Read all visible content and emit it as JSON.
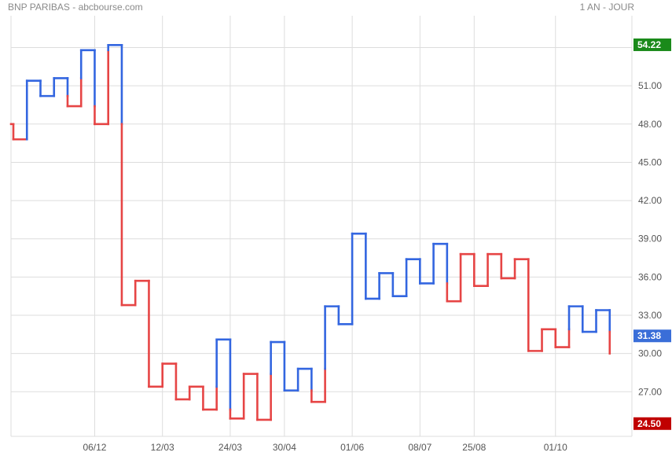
{
  "header": {
    "title": "BNP PARIBAS - abcbourse.com",
    "period": "1 AN - JOUR"
  },
  "colors": {
    "up": "#3366e0",
    "down": "#e64545",
    "grid": "#dddddd",
    "high_badge": "#1a8a1a",
    "last_badge": "#3a6ed8",
    "low_badge": "#c00000"
  },
  "chart_data": {
    "type": "line",
    "subtype": "kagi",
    "title": "BNP PARIBAS - abcbourse.com",
    "period": "1 AN - JOUR",
    "ylim": [
      23.5,
      56.5
    ],
    "y_ticks": [
      "27.00",
      "30.00",
      "33.00",
      "36.00",
      "39.00",
      "42.00",
      "45.00",
      "48.00",
      "51.00",
      "54.00"
    ],
    "x_ticks": [
      "06/12",
      "12/03",
      "24/03",
      "30/04",
      "01/06",
      "08/07",
      "25/08",
      "01/10"
    ],
    "badges": {
      "high": "54.22",
      "last": "31.38",
      "low": "24.50"
    },
    "kagi_levels": [
      48.0,
      46.8,
      51.4,
      50.2,
      51.6,
      49.4,
      53.8,
      48.0,
      54.2,
      33.8,
      35.7,
      27.4,
      29.2,
      26.4,
      27.4,
      25.6,
      31.1,
      24.9,
      28.4,
      24.8,
      30.9,
      27.1,
      28.8,
      26.2,
      33.7,
      32.3,
      39.4,
      34.3,
      36.3,
      34.5,
      37.4,
      35.5,
      38.6,
      34.1,
      37.8,
      35.3,
      37.8,
      35.9,
      37.4,
      30.2,
      31.9,
      30.5,
      33.7,
      31.7,
      33.4,
      30.0
    ],
    "kagi_turn_dates": [
      "",
      "",
      "",
      "",
      "",
      "",
      "06/12",
      "",
      "",
      "",
      "",
      "12/03",
      "",
      "",
      "",
      "",
      "24/03",
      "",
      "",
      "",
      "30/04",
      "",
      "",
      "",
      "",
      "01/06",
      "",
      "",
      "",
      "",
      "08/07",
      "",
      "",
      "",
      "25/08",
      "",
      "",
      "",
      "",
      "",
      "01/10",
      "",
      "",
      "",
      "",
      ""
    ],
    "grid": true,
    "legend": "none"
  }
}
